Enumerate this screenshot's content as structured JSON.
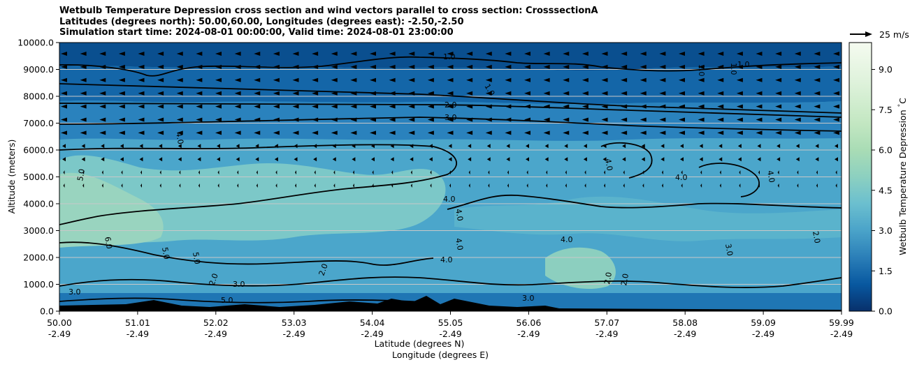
{
  "chart_data": {
    "type": "contour",
    "title_lines": [
      "Wetbulb Temperature Depression cross section and wind vectors parallel to cross section: CrosssectionA",
      "Latitudes (degrees north): 50.00,60.00, Longitudes (degrees east): -2.50,-2.50",
      "Simulation start time: 2024-08-01 00:00:00, Valid time: 2024-08-01 23:00:00"
    ],
    "ylabel": "Altitude (meters)",
    "xlabel_lines": [
      "Latitude (degrees N)",
      "Longitude (degrees E)"
    ],
    "ylim": [
      0,
      10000
    ],
    "y_ticks": [
      "0.0",
      "1000.0",
      "2000.0",
      "3000.0",
      "4000.0",
      "5000.0",
      "6000.0",
      "7000.0",
      "8000.0",
      "9000.0",
      "10000.0"
    ],
    "x_ticks": [
      {
        "lat": "50.00",
        "lon": "-2.49"
      },
      {
        "lat": "51.01",
        "lon": "-2.49"
      },
      {
        "lat": "52.02",
        "lon": "-2.49"
      },
      {
        "lat": "53.03",
        "lon": "-2.49"
      },
      {
        "lat": "54.04",
        "lon": "-2.49"
      },
      {
        "lat": "55.05",
        "lon": "-2.49"
      },
      {
        "lat": "56.06",
        "lon": "-2.49"
      },
      {
        "lat": "57.07",
        "lon": "-2.49"
      },
      {
        "lat": "58.08",
        "lon": "-2.49"
      },
      {
        "lat": "59.09",
        "lon": "-2.49"
      },
      {
        "lat": "59.99",
        "lon": "-2.49"
      }
    ],
    "colorbar": {
      "label": "Wetbulb Temperature Depression $^\\circ$C",
      "range": [
        0,
        10
      ],
      "ticks": [
        "0.0",
        "1.5",
        "3.0",
        "4.5",
        "6.0",
        "7.5",
        "9.0"
      ],
      "colormap": "GnBu_r"
    },
    "vector_key": "25 m/s",
    "contour_labels": [
      "1.0",
      "2.0",
      "3.0",
      "4.0",
      "5.0",
      "6.0"
    ],
    "grid": "horizontal"
  }
}
